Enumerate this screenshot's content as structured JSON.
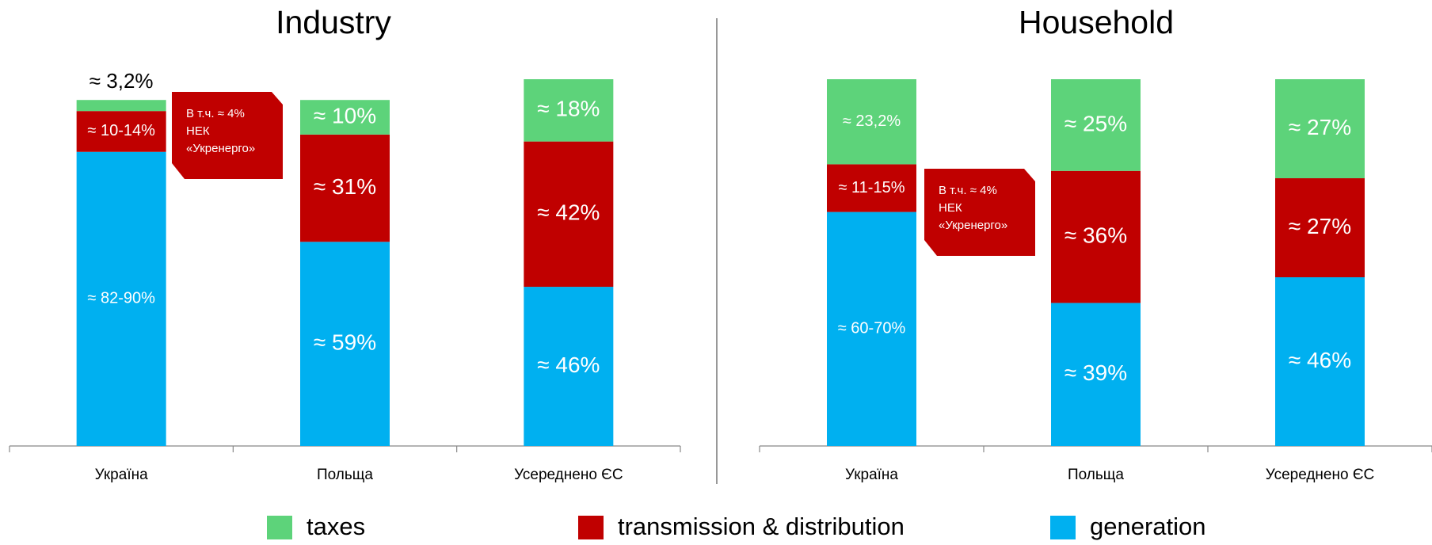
{
  "chart_data": [
    {
      "type": "stacked-bar",
      "title": "Industry",
      "categories": [
        "Україна",
        "Польща",
        "Усереднено ЄС"
      ],
      "series": [
        {
          "name": "taxes",
          "color": "#5dd37a",
          "values": [
            3.2,
            10,
            18
          ],
          "value_labels": [
            "≈ 3,2%",
            "≈ 10%",
            "≈ 18%"
          ]
        },
        {
          "name": "transmission & distribution",
          "color": "#c00000",
          "values": [
            11.8,
            31,
            42
          ],
          "value_labels": [
            "≈ 10-14%",
            "≈ 31%",
            "≈ 42%"
          ]
        },
        {
          "name": "generation",
          "color": "#00b0f0",
          "values": [
            85,
            59,
            46
          ],
          "value_labels": [
            "≈ 82-90%",
            "≈ 59%",
            "≈ 46%"
          ]
        }
      ],
      "ylim": [
        0,
        106
      ],
      "annotation": [
        "В т.ч. ≈ 4%",
        "НЕК",
        "«Укренерго»"
      ],
      "legend": "bottom"
    },
    {
      "type": "stacked-bar",
      "title": "Household",
      "categories": [
        "Україна",
        "Польща",
        "Усереднено ЄС"
      ],
      "series": [
        {
          "color": "#5dd37a",
          "values": [
            23.2,
            25,
            27
          ],
          "value_labels": [
            "≈ 23,2%",
            "≈ 25%",
            "≈ 27%"
          ]
        },
        {
          "color": "#c00000",
          "values": [
            13,
            36,
            27
          ],
          "value_labels": [
            "≈ 11-15%",
            "≈ 36%",
            "≈ 27%"
          ]
        },
        {
          "color": "#00b0f0",
          "values": [
            63.8,
            39,
            46
          ],
          "value_labels": [
            "≈ 60-70%",
            "≈ 39%",
            "≈ 46%"
          ]
        }
      ],
      "ylim": [
        0,
        100
      ],
      "annotation": [
        "В т.ч. ≈ 4%",
        "НЕК",
        "«Укренерго»"
      ]
    }
  ]
}
